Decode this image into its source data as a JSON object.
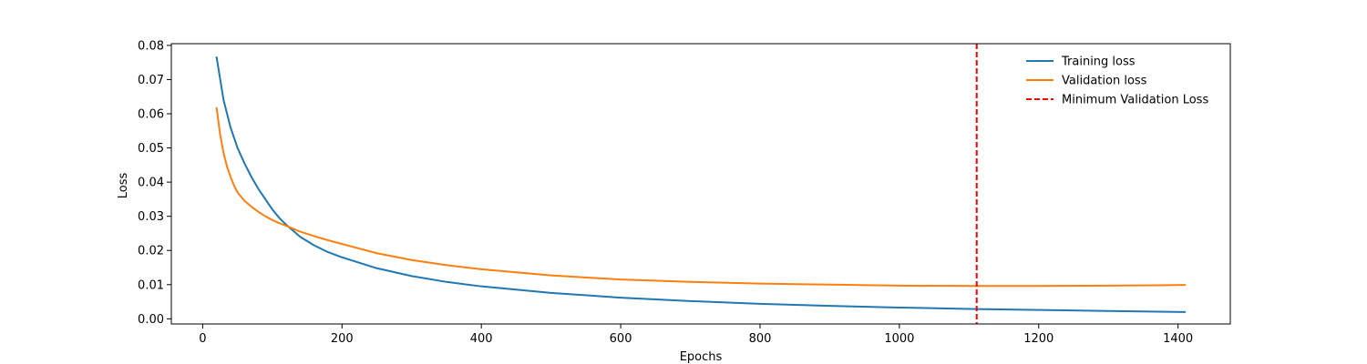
{
  "chart_data": {
    "type": "line",
    "title": "",
    "xlabel": "Epochs",
    "ylabel": "Loss",
    "xlim": [
      -45,
      1475
    ],
    "ylim": [
      -0.0015,
      0.0805
    ],
    "xticks": [
      0,
      200,
      400,
      600,
      800,
      1000,
      1200,
      1400
    ],
    "yticks": [
      0.0,
      0.01,
      0.02,
      0.03,
      0.04,
      0.05,
      0.06,
      0.07,
      0.08
    ],
    "ytick_labels": [
      "0.00",
      "0.01",
      "0.02",
      "0.03",
      "0.04",
      "0.05",
      "0.06",
      "0.07",
      "0.08"
    ],
    "grid": false,
    "legend_position": "top-right",
    "series": [
      {
        "name": "Training loss",
        "color": "#1f77b4",
        "style": "solid",
        "x": [
          20,
          30,
          40,
          50,
          60,
          70,
          80,
          90,
          100,
          110,
          120,
          140,
          160,
          180,
          200,
          250,
          300,
          350,
          400,
          500,
          600,
          700,
          800,
          900,
          1000,
          1100,
          1200,
          1300,
          1410
        ],
        "y": [
          0.0765,
          0.064,
          0.056,
          0.05,
          0.0455,
          0.0415,
          0.038,
          0.035,
          0.032,
          0.0295,
          0.0275,
          0.024,
          0.0215,
          0.0195,
          0.018,
          0.0148,
          0.0125,
          0.0108,
          0.0095,
          0.0076,
          0.0062,
          0.0052,
          0.0044,
          0.0038,
          0.0033,
          0.0029,
          0.0026,
          0.0023,
          0.002
        ]
      },
      {
        "name": "Validation loss",
        "color": "#ff7f0e",
        "style": "solid",
        "x": [
          20,
          25,
          30,
          35,
          40,
          45,
          50,
          60,
          70,
          80,
          90,
          100,
          110,
          120,
          140,
          160,
          180,
          200,
          250,
          300,
          350,
          400,
          500,
          600,
          700,
          800,
          900,
          1000,
          1110,
          1200,
          1300,
          1410
        ],
        "y": [
          0.0617,
          0.054,
          0.0485,
          0.0445,
          0.0415,
          0.039,
          0.037,
          0.0345,
          0.0328,
          0.0313,
          0.03,
          0.0289,
          0.028,
          0.0272,
          0.0255,
          0.0242,
          0.023,
          0.0219,
          0.0192,
          0.0172,
          0.0157,
          0.0145,
          0.0127,
          0.0115,
          0.0108,
          0.0103,
          0.01,
          0.0097,
          0.0096,
          0.0096,
          0.0097,
          0.0099
        ]
      },
      {
        "name": "Minimum Validation Loss",
        "color": "#ff0000",
        "style": "dashed",
        "type": "vline",
        "x_value": 1111
      }
    ]
  }
}
